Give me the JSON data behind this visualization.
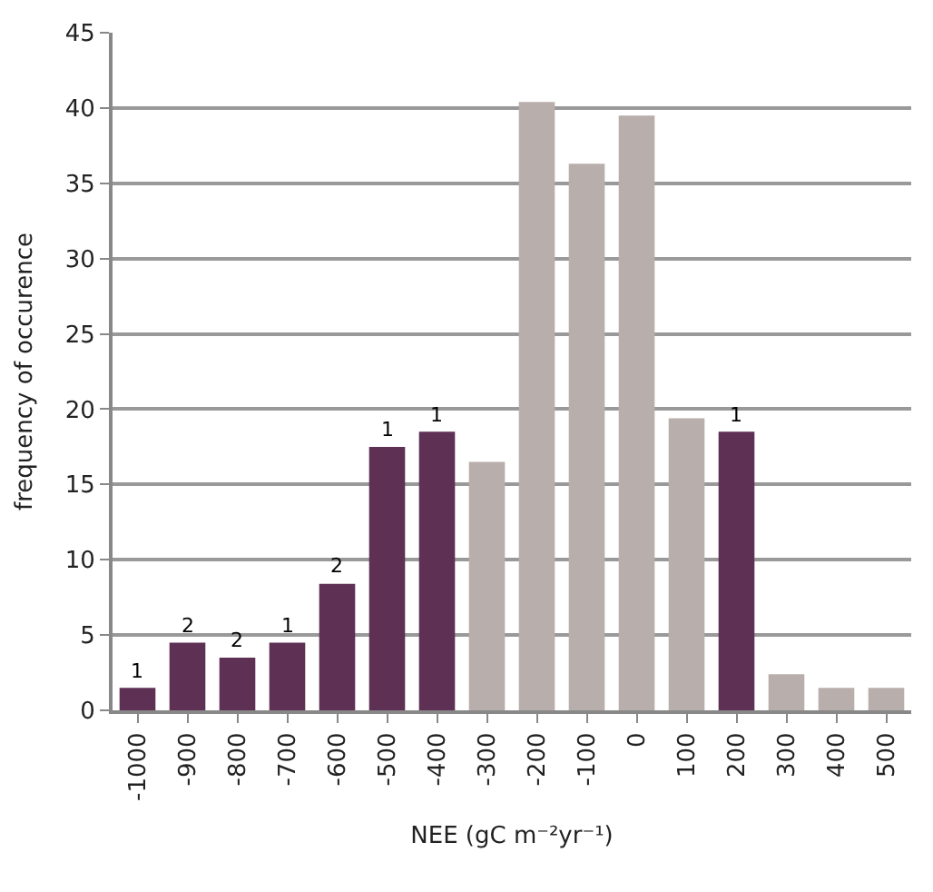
{
  "chart_data": {
    "type": "bar",
    "xlabel": "NEE (gC m⁻²yr⁻¹)",
    "ylabel": "frequency of occurence",
    "categories": [
      "-1000",
      "-900",
      "-800",
      "-700",
      "-600",
      "-500",
      "-400",
      "-300",
      "-200",
      "-100",
      "0",
      "100",
      "200",
      "300",
      "400",
      "500"
    ],
    "values": [
      1.5,
      4.5,
      3.5,
      4.5,
      8.4,
      17.5,
      18.5,
      16.5,
      40.4,
      36.3,
      39.5,
      19.4,
      18.5,
      2.4,
      1.5,
      1.5
    ],
    "colors": [
      "#5e3154",
      "#5e3154",
      "#5e3154",
      "#5e3154",
      "#5e3154",
      "#5e3154",
      "#5e3154",
      "#b8aeac",
      "#b8aeac",
      "#b8aeac",
      "#b8aeac",
      "#b8aeac",
      "#5e3154",
      "#b8aeac",
      "#b8aeac",
      "#b8aeac"
    ],
    "annotations": [
      {
        "text": "1",
        "x": "-1000",
        "y": 1.5
      },
      {
        "text": "2",
        "x": "-900",
        "y": 4.5
      },
      {
        "text": "2",
        "x": "-800",
        "y": 3.5
      },
      {
        "text": "1",
        "x": "-700",
        "y": 4.5
      },
      {
        "text": "2",
        "x": "-600",
        "y": 8.4
      },
      {
        "text": "1",
        "x": "-500",
        "y": 17.5
      },
      {
        "text": "1",
        "x": "-400",
        "y": 18.5
      },
      {
        "text": "1",
        "x": "200",
        "y": 18.5
      }
    ],
    "ylim": [
      0,
      45
    ],
    "yticks": [
      0,
      5,
      10,
      15,
      20,
      25,
      30,
      35,
      40,
      45
    ],
    "grid": "y"
  }
}
